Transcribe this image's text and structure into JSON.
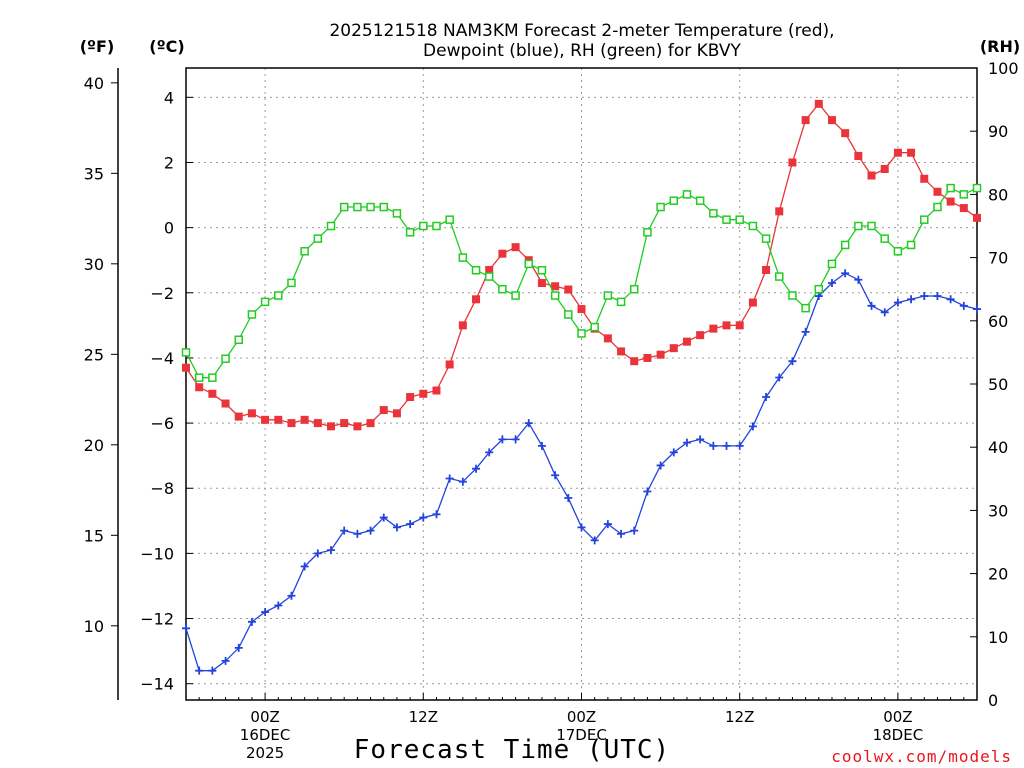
{
  "title": {
    "line1": "2025121518 NAM3KM Forecast 2-meter Temperature (red),",
    "line2": "Dewpoint (blue), RH (green) for KBVY"
  },
  "units": {
    "fahrenheit": "(ºF)",
    "celsius": "(ºC)",
    "rh": "(RH)"
  },
  "xlabel": "Forecast Time (UTC)",
  "credit": "coolwx.com/models",
  "colors": {
    "temp": "#e8343a",
    "dewpoint": "#2244dd",
    "rh": "#22cc22",
    "axis": "#000000",
    "grid": "#9c9c9c"
  },
  "chart_data": {
    "type": "line",
    "x_unit": "forecast hour (UTC) from 2025-12-15 18Z",
    "x_range": [
      0,
      60
    ],
    "x_ticks": [
      {
        "hour": 6,
        "label": "00Z",
        "date": "16DEC",
        "year": "2025"
      },
      {
        "hour": 18,
        "label": "12Z",
        "date": "",
        "year": ""
      },
      {
        "hour": 30,
        "label": "00Z",
        "date": "17DEC",
        "year": ""
      },
      {
        "hour": 42,
        "label": "12Z",
        "date": "",
        "year": ""
      },
      {
        "hour": 54,
        "label": "00Z",
        "date": "18DEC",
        "year": ""
      }
    ],
    "y_left_celsius": {
      "range": [
        -14.5,
        4.9
      ],
      "ticks": [
        -14,
        -12,
        -10,
        -8,
        -6,
        -4,
        -2,
        0,
        2,
        4
      ],
      "tick_labels": [
        "−14",
        "−12",
        "−10",
        "−8",
        "−6",
        "−4",
        "−2",
        "0",
        "2",
        "4"
      ]
    },
    "y_left_fahrenheit": {
      "ticks": [
        10,
        15,
        20,
        25,
        30,
        35,
        40
      ]
    },
    "y_right_rh": {
      "range": [
        0,
        100
      ],
      "ticks": [
        0,
        10,
        20,
        30,
        40,
        50,
        60,
        70,
        80,
        90,
        100
      ]
    },
    "grid": true,
    "series": [
      {
        "name": "2-meter Temperature",
        "axis": "celsius",
        "marker": "filled-square",
        "values": [
          -4.3,
          -4.9,
          -5.1,
          -5.4,
          -5.8,
          -5.7,
          -5.9,
          -5.9,
          -6.0,
          -5.9,
          -6.0,
          -6.1,
          -6.0,
          -6.1,
          -6.0,
          -5.6,
          -5.7,
          -5.2,
          -5.1,
          -5.0,
          -4.2,
          -3.0,
          -2.2,
          -1.3,
          -0.8,
          -0.6,
          -1.0,
          -1.7,
          -1.8,
          -1.9,
          -2.5,
          -3.1,
          -3.4,
          -3.8,
          -4.1,
          -4.0,
          -3.9,
          -3.7,
          -3.5,
          -3.3,
          -3.1,
          -3.0,
          -3.0,
          -2.3,
          -1.3,
          0.5,
          2.0,
          3.3,
          3.8,
          3.3,
          2.9,
          2.2,
          1.6,
          1.8,
          2.3,
          2.3,
          1.5,
          1.1,
          0.8,
          0.6,
          0.3
        ]
      },
      {
        "name": "Dewpoint",
        "axis": "celsius",
        "marker": "plus",
        "values": [
          -12.3,
          -13.6,
          -13.6,
          -13.3,
          -12.9,
          -12.1,
          -11.8,
          -11.6,
          -11.3,
          -10.4,
          -10.0,
          -9.9,
          -9.3,
          -9.4,
          -9.3,
          -8.9,
          -9.2,
          -9.1,
          -8.9,
          -8.8,
          -7.7,
          -7.8,
          -7.4,
          -6.9,
          -6.5,
          -6.5,
          -6.0,
          -6.7,
          -7.6,
          -8.3,
          -9.2,
          -9.6,
          -9.1,
          -9.4,
          -9.3,
          -8.1,
          -7.3,
          -6.9,
          -6.6,
          -6.5,
          -6.7,
          -6.7,
          -6.7,
          -6.1,
          -5.2,
          -4.6,
          -4.1,
          -3.2,
          -2.1,
          -1.7,
          -1.4,
          -1.6,
          -2.4,
          -2.6,
          -2.3,
          -2.2,
          -2.1,
          -2.1,
          -2.2,
          -2.4,
          -2.5
        ]
      },
      {
        "name": "RH",
        "axis": "rh",
        "marker": "open-square",
        "values": [
          55,
          51,
          51,
          54,
          57,
          61,
          63,
          64,
          66,
          71,
          73,
          75,
          78,
          78,
          78,
          78,
          77,
          74,
          75,
          75,
          76,
          70,
          68,
          67,
          65,
          64,
          69,
          68,
          64,
          61,
          58,
          59,
          64,
          63,
          65,
          74,
          78,
          79,
          80,
          79,
          77,
          76,
          76,
          75,
          73,
          67,
          64,
          62,
          65,
          69,
          72,
          75,
          75,
          73,
          71,
          72,
          76,
          78,
          81,
          80,
          81
        ]
      }
    ]
  }
}
